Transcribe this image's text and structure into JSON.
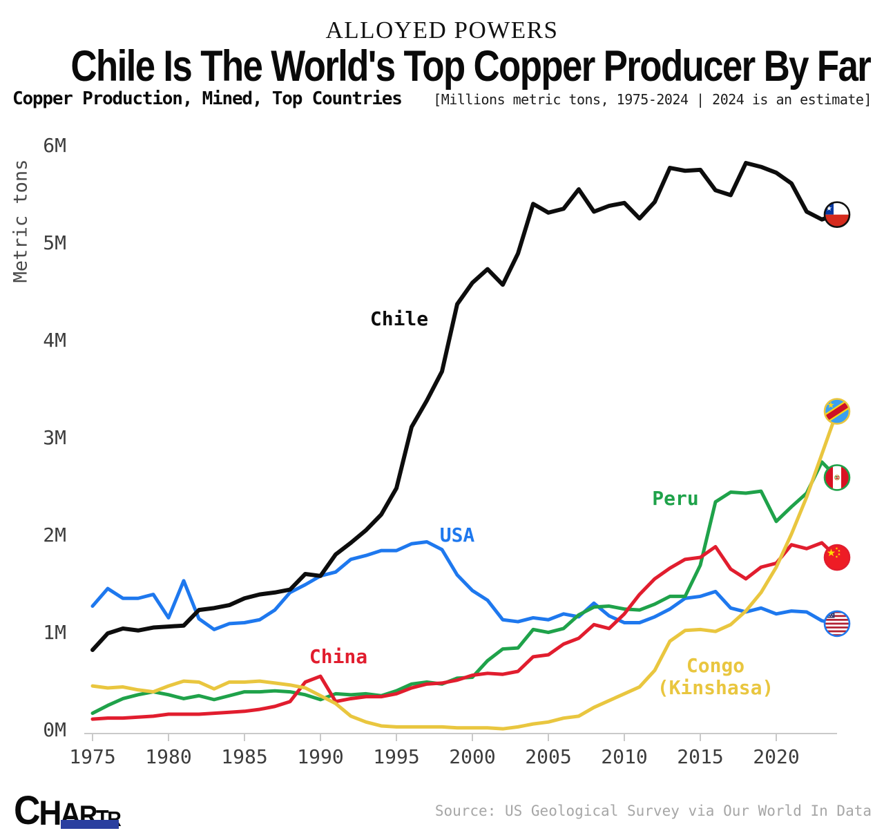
{
  "header": {
    "kicker": "ALLOYED POWERS",
    "title": "Chile Is The World's Top Copper Producer By Far",
    "subtitle_bold": "Copper Production, Mined, Top Countries",
    "subtitle_note": "[Millions metric tons, 1975-2024 | 2024 is an estimate]"
  },
  "chart_data": {
    "type": "line",
    "title": "Chile Is The World's Top Copper Producer By Far",
    "subtitle": "Copper Production, Mined, Top Countries",
    "units": "million metric tons",
    "note": "1975-2024, 2024 is an estimate",
    "ylabel": "Metric tons",
    "xlabel": "",
    "grid": false,
    "legend_position": "inline-labels-with-flag-endpoints",
    "ylim": [
      0,
      6
    ],
    "x_range": [
      1975,
      2024
    ],
    "x_tick_years": [
      1975,
      1980,
      1985,
      1990,
      1995,
      2000,
      2005,
      2010,
      2015,
      2020
    ],
    "y_ticks": [
      {
        "label": "0M",
        "value": 0
      },
      {
        "label": "1M",
        "value": 1
      },
      {
        "label": "2M",
        "value": 2
      },
      {
        "label": "3M",
        "value": 3
      },
      {
        "label": "4M",
        "value": 4
      },
      {
        "label": "5M",
        "value": 5
      },
      {
        "label": "6M",
        "value": 6
      }
    ],
    "years": [
      1975,
      1976,
      1977,
      1978,
      1979,
      1980,
      1981,
      1982,
      1983,
      1984,
      1985,
      1986,
      1987,
      1988,
      1989,
      1990,
      1991,
      1992,
      1993,
      1994,
      1995,
      1996,
      1997,
      1998,
      1999,
      2000,
      2001,
      2002,
      2003,
      2004,
      2005,
      2006,
      2007,
      2008,
      2009,
      2010,
      2011,
      2012,
      2013,
      2014,
      2015,
      2016,
      2017,
      2018,
      2019,
      2020,
      2021,
      2022,
      2023,
      2024
    ],
    "series": [
      {
        "id": "usa",
        "name": "USA",
        "label_lines": [
          "USA"
        ],
        "color": "#1e78ee",
        "flag_icon": "usa-flag-icon",
        "values": [
          1.28,
          1.46,
          1.36,
          1.36,
          1.4,
          1.16,
          1.54,
          1.15,
          1.04,
          1.1,
          1.11,
          1.14,
          1.24,
          1.42,
          1.5,
          1.59,
          1.63,
          1.76,
          1.8,
          1.85,
          1.85,
          1.92,
          1.94,
          1.86,
          1.6,
          1.44,
          1.34,
          1.14,
          1.12,
          1.16,
          1.14,
          1.2,
          1.17,
          1.31,
          1.18,
          1.11,
          1.11,
          1.17,
          1.25,
          1.36,
          1.38,
          1.43,
          1.26,
          1.22,
          1.26,
          1.2,
          1.23,
          1.22,
          1.13,
          1.1
        ]
      },
      {
        "id": "peru",
        "name": "Peru",
        "label_lines": [
          "Peru"
        ],
        "color": "#1fa24a",
        "flag_icon": "peru-flag-icon",
        "values": [
          0.18,
          0.26,
          0.33,
          0.37,
          0.4,
          0.37,
          0.33,
          0.36,
          0.32,
          0.36,
          0.4,
          0.4,
          0.41,
          0.4,
          0.37,
          0.32,
          0.38,
          0.37,
          0.38,
          0.36,
          0.41,
          0.48,
          0.5,
          0.48,
          0.54,
          0.55,
          0.72,
          0.84,
          0.85,
          1.04,
          1.01,
          1.05,
          1.19,
          1.27,
          1.28,
          1.25,
          1.24,
          1.3,
          1.38,
          1.38,
          1.7,
          2.35,
          2.45,
          2.44,
          2.46,
          2.15,
          2.3,
          2.44,
          2.76,
          2.6
        ]
      },
      {
        "id": "china",
        "name": "China",
        "label_lines": [
          "China"
        ],
        "color": "#e11d2e",
        "flag_icon": "china-flag-icon",
        "values": [
          0.12,
          0.13,
          0.13,
          0.14,
          0.15,
          0.17,
          0.17,
          0.17,
          0.18,
          0.19,
          0.2,
          0.22,
          0.25,
          0.3,
          0.5,
          0.56,
          0.3,
          0.33,
          0.35,
          0.35,
          0.38,
          0.44,
          0.48,
          0.49,
          0.52,
          0.57,
          0.59,
          0.58,
          0.61,
          0.76,
          0.78,
          0.89,
          0.95,
          1.09,
          1.05,
          1.2,
          1.4,
          1.56,
          1.67,
          1.76,
          1.78,
          1.89,
          1.66,
          1.56,
          1.68,
          1.72,
          1.91,
          1.87,
          1.93,
          1.78
        ]
      },
      {
        "id": "congo",
        "name": "Congo (Kinshasa)",
        "label_lines": [
          "Congo",
          "(Kinshasa)"
        ],
        "color": "#e9c63f",
        "flag_icon": "congo-flag-icon",
        "values": [
          0.46,
          0.44,
          0.45,
          0.42,
          0.4,
          0.46,
          0.51,
          0.5,
          0.43,
          0.5,
          0.5,
          0.51,
          0.49,
          0.47,
          0.44,
          0.36,
          0.28,
          0.15,
          0.09,
          0.05,
          0.04,
          0.04,
          0.04,
          0.04,
          0.03,
          0.03,
          0.03,
          0.02,
          0.04,
          0.07,
          0.09,
          0.13,
          0.15,
          0.24,
          0.31,
          0.38,
          0.45,
          0.62,
          0.92,
          1.03,
          1.04,
          1.02,
          1.09,
          1.23,
          1.42,
          1.68,
          2.02,
          2.4,
          2.84,
          3.28
        ]
      },
      {
        "id": "chile",
        "name": "Chile",
        "label_lines": [
          "Chile"
        ],
        "color": "#0d0d0d",
        "flag_icon": "chile-flag-icon",
        "values": [
          0.83,
          1.0,
          1.05,
          1.03,
          1.06,
          1.07,
          1.08,
          1.24,
          1.26,
          1.29,
          1.36,
          1.4,
          1.42,
          1.45,
          1.61,
          1.59,
          1.81,
          1.93,
          2.06,
          2.22,
          2.49,
          3.12,
          3.39,
          3.69,
          4.38,
          4.6,
          4.74,
          4.58,
          4.9,
          5.41,
          5.32,
          5.36,
          5.56,
          5.33,
          5.39,
          5.42,
          5.26,
          5.43,
          5.78,
          5.75,
          5.76,
          5.55,
          5.5,
          5.83,
          5.79,
          5.73,
          5.62,
          5.33,
          5.25,
          5.3
        ]
      }
    ]
  },
  "footer": {
    "logo_letters": [
      "C",
      "H",
      "A",
      "R",
      "T",
      "R"
    ],
    "source": "Source: US Geological Survey via Our World In Data"
  }
}
